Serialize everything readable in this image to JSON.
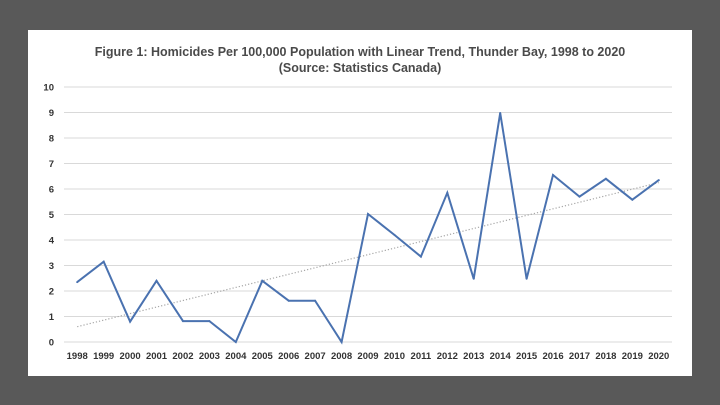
{
  "colors": {
    "background": "#595959",
    "panel": "#ffffff",
    "series": "#4a72b0",
    "trend": "#a6a6a6",
    "grid": "#d9d9d9"
  },
  "chart_data": {
    "type": "line",
    "title": "Figure 1: Homicides Per 100,000 Population with Linear Trend, Thunder Bay, 1998 to 2020",
    "subtitle": "(Source: Statistics Canada)",
    "xlabel": "",
    "ylabel": "",
    "x": [
      "1998",
      "1999",
      "2000",
      "2001",
      "2002",
      "2003",
      "2004",
      "2005",
      "2006",
      "2007",
      "2008",
      "2009",
      "2010",
      "2011",
      "2012",
      "2013",
      "2014",
      "2015",
      "2016",
      "2017",
      "2018",
      "2019",
      "2020"
    ],
    "series": [
      {
        "name": "",
        "values": [
          2.35,
          3.15,
          0.8,
          2.4,
          0.82,
          0.82,
          0.0,
          2.4,
          1.62,
          1.62,
          0.0,
          5.02,
          4.2,
          3.35,
          5.85,
          2.48,
          8.98,
          2.48,
          6.55,
          5.7,
          6.4,
          5.58,
          6.35
        ]
      }
    ],
    "trendline": {
      "type": "linear",
      "start": 0.6,
      "end": 6.25
    },
    "ylim": [
      0,
      10
    ],
    "yticks": [
      0,
      1,
      2,
      3,
      4,
      5,
      6,
      7,
      8,
      9,
      10
    ],
    "grid": true,
    "legend": "none"
  }
}
